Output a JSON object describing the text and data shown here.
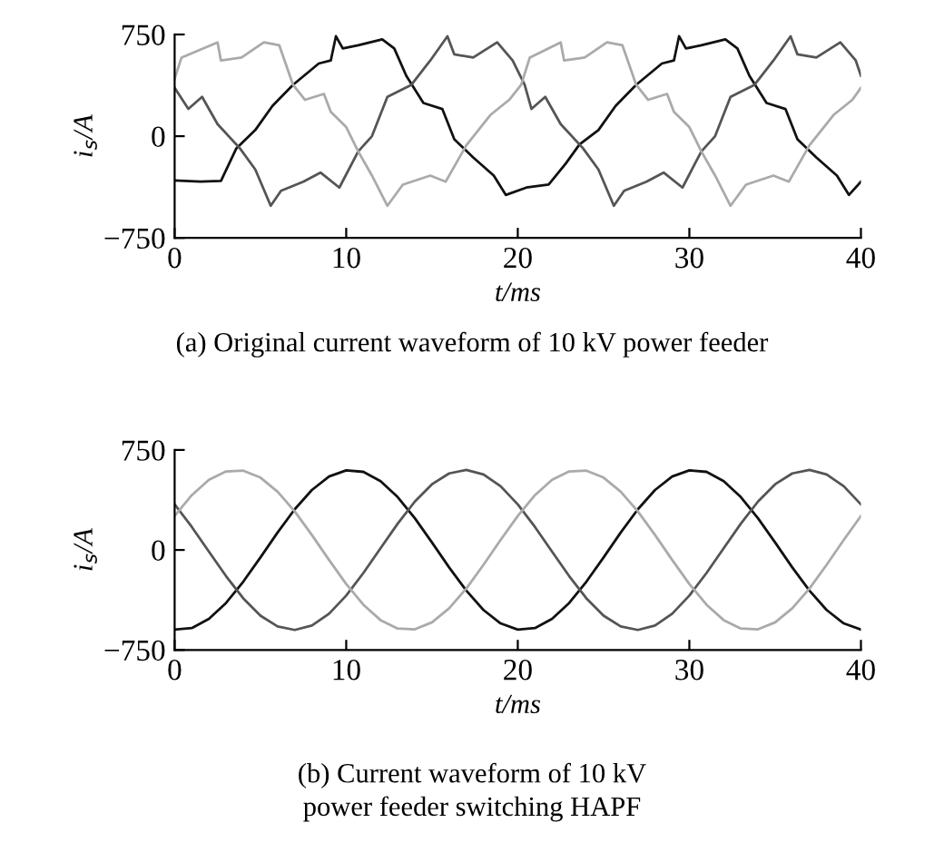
{
  "chart_data": [
    {
      "type": "line",
      "xlabel": "t/ms",
      "ylabel": "i$_{s}$/A",
      "xlim": [
        0,
        40
      ],
      "xticks": [
        0,
        10,
        20,
        30,
        40
      ],
      "ylim": [
        -750,
        750
      ],
      "yticks": [
        {
          "value": -750,
          "label": "−750"
        },
        0,
        750
      ],
      "grid": false,
      "legend": false,
      "annotations": [
        "(a) Original current waveform of 10 kV power feeder"
      ],
      "series": [
        {
          "color": "#111111",
          "x": [
            0,
            1.5,
            2.7,
            3.6,
            4.7,
            5.7,
            6.9,
            8.4,
            9.1,
            9.4,
            9.8,
            10.7,
            12.1,
            12.8,
            13.5,
            14.5,
            15.6,
            16.3,
            17.4,
            18.6,
            19.3,
            20.5,
            21.8,
            22.8,
            23.6,
            24.7,
            25.7,
            26.9,
            28.4,
            29.1,
            29.4,
            29.8,
            30.7,
            32.1,
            32.8,
            33.5,
            34.5,
            35.6,
            36.3,
            37.4,
            38.6,
            39.3,
            40
          ],
          "values": [
            -326,
            -335,
            -330,
            -89,
            45,
            223,
            379,
            536,
            558,
            737,
            647,
            670,
            714,
            647,
            446,
            245,
            201,
            -22,
            -157,
            -290,
            -433,
            -379,
            -357,
            -201,
            -60,
            45,
            223,
            379,
            536,
            558,
            737,
            647,
            670,
            714,
            647,
            446,
            245,
            201,
            -22,
            -157,
            -290,
            -433,
            -335
          ]
        },
        {
          "color": "#555555",
          "x": [
            0,
            0.8,
            1.6,
            2.5,
            3.8,
            4.7,
            5.6,
            6.2,
            7.5,
            8.5,
            9.6,
            10.7,
            11.5,
            12.4,
            13.8,
            14.9,
            15.9,
            16.3,
            17.4,
            18.8,
            19.7,
            20.4,
            20.8,
            21.6,
            22.5,
            23.8,
            24.7,
            25.6,
            26.2,
            27.5,
            28.5,
            29.6,
            30.7,
            31.5,
            32.4,
            33.8,
            34.9,
            35.9,
            36.3,
            37.4,
            38.8,
            39.7,
            40
          ],
          "values": [
            357,
            201,
            290,
            89,
            -89,
            -245,
            -513,
            -402,
            -335,
            -268,
            -379,
            -112,
            0,
            290,
            379,
            558,
            737,
            603,
            580,
            692,
            558,
            379,
            201,
            290,
            89,
            -89,
            -245,
            -513,
            -402,
            -335,
            -268,
            -379,
            -112,
            0,
            290,
            379,
            558,
            737,
            603,
            580,
            692,
            558,
            446
          ]
        },
        {
          "color": "#aaaaaa",
          "x": [
            0,
            0.4,
            2.5,
            2.7,
            3.9,
            5.2,
            6.1,
            6.9,
            7.6,
            8.7,
            9.1,
            10,
            10.7,
            11.5,
            12.4,
            13.3,
            14.9,
            15.8,
            17,
            18.4,
            19.5,
            20.2,
            20.7,
            22.5,
            22.7,
            23.9,
            25.2,
            26.1,
            26.9,
            27.6,
            28.7,
            29.1,
            30,
            30.7,
            31.5,
            32.4,
            33.3,
            34.9,
            35.8,
            37,
            38.4,
            39.5,
            40
          ],
          "values": [
            424,
            580,
            692,
            558,
            580,
            692,
            670,
            379,
            268,
            312,
            179,
            67,
            -112,
            -290,
            -513,
            -357,
            -290,
            -335,
            -67,
            156,
            268,
            379,
            580,
            692,
            558,
            580,
            692,
            670,
            379,
            268,
            312,
            179,
            67,
            -112,
            -290,
            -513,
            -357,
            -290,
            -335,
            -67,
            156,
            268,
            357
          ]
        }
      ]
    },
    {
      "type": "line",
      "xlabel": "t/ms",
      "ylabel": "i$_{s}$/A",
      "xlim": [
        0,
        40
      ],
      "xticks": [
        0,
        10,
        20,
        30,
        40
      ],
      "ylim": [
        -750,
        750
      ],
      "yticks": [
        {
          "value": -750,
          "label": "−750"
        },
        0,
        750
      ],
      "grid": false,
      "legend": false,
      "annotations": [
        "(b) Current waveform of 10 kV\npower feeder switching HAPF"
      ],
      "series": [
        {
          "color": "#111111",
          "x": [
            0,
            1,
            2,
            3,
            4,
            5,
            6,
            7,
            8,
            9,
            10,
            11,
            12,
            13,
            14,
            15,
            16,
            17,
            18,
            19,
            20,
            21,
            22,
            23,
            24,
            25,
            26,
            27,
            28,
            29,
            30,
            31,
            32,
            33,
            34,
            35,
            36,
            37,
            38,
            39,
            40
          ],
          "values": [
            -597,
            -586,
            -516,
            -397,
            -238,
            -56,
            131,
            305,
            450,
            551,
            597,
            586,
            516,
            397,
            238,
            56,
            -131,
            -305,
            -450,
            -551,
            -597,
            -586,
            -516,
            -397,
            -238,
            -56,
            131,
            305,
            450,
            551,
            597,
            586,
            516,
            397,
            238,
            56,
            -131,
            -305,
            -450,
            -551,
            -597
          ]
        },
        {
          "color": "#555555",
          "x": [
            0,
            1,
            2,
            3,
            4,
            5,
            6,
            7,
            8,
            9,
            10,
            11,
            12,
            13,
            14,
            15,
            16,
            17,
            18,
            19,
            20,
            21,
            22,
            23,
            24,
            25,
            26,
            27,
            28,
            29,
            30,
            31,
            32,
            33,
            34,
            35,
            36,
            37,
            38,
            39,
            40
          ],
          "values": [
            342,
            173,
            -13,
            -197,
            -363,
            -493,
            -574,
            -600,
            -567,
            -478,
            -342,
            -173,
            13,
            197,
            363,
            493,
            574,
            600,
            567,
            478,
            342,
            173,
            -13,
            -197,
            -363,
            -493,
            -574,
            -600,
            -567,
            -478,
            -342,
            -173,
            13,
            197,
            363,
            493,
            574,
            600,
            567,
            478,
            342
          ]
        },
        {
          "color": "#aaaaaa",
          "x": [
            0,
            1,
            2,
            3,
            4,
            5,
            6,
            7,
            8,
            9,
            10,
            11,
            12,
            13,
            14,
            15,
            16,
            17,
            18,
            19,
            20,
            21,
            22,
            23,
            24,
            25,
            26,
            27,
            28,
            29,
            30,
            31,
            32,
            33,
            34,
            35,
            36,
            37,
            38,
            39,
            40
          ],
          "values": [
            255,
            411,
            526,
            589,
            595,
            543,
            437,
            289,
            112,
            -75,
            -255,
            -411,
            -526,
            -589,
            -595,
            -543,
            -437,
            -289,
            -112,
            75,
            255,
            411,
            526,
            589,
            595,
            543,
            437,
            289,
            112,
            -75,
            -255,
            -411,
            -526,
            -589,
            -595,
            -543,
            -437,
            -289,
            -112,
            75,
            255
          ]
        }
      ]
    }
  ]
}
